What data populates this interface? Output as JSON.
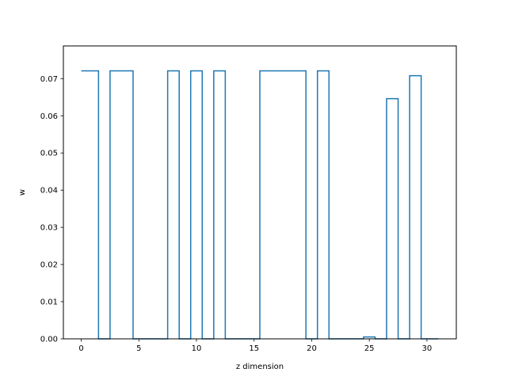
{
  "chart_data": {
    "type": "line",
    "drawstyle": "steps-mid",
    "title": "",
    "xlabel": "z dimension",
    "ylabel": "w",
    "xlim": [
      -1.55,
      32.55
    ],
    "ylim": [
      0.0,
      0.0788
    ],
    "xticks": [
      0,
      5,
      10,
      15,
      20,
      25,
      30
    ],
    "yticks": [
      0.0,
      0.01,
      0.02,
      0.03,
      0.04,
      0.05,
      0.06,
      0.07
    ],
    "ytick_labels": [
      "0.00",
      "0.01",
      "0.02",
      "0.03",
      "0.04",
      "0.05",
      "0.06",
      "0.07"
    ],
    "grid": false,
    "legend": false,
    "line_color": "#1f77b4",
    "series": [
      {
        "x": [
          0,
          1,
          2,
          3,
          4,
          5,
          6,
          7,
          8,
          9,
          10,
          11,
          12,
          13,
          14,
          15,
          16,
          17,
          18,
          19,
          20,
          21,
          22,
          23,
          24,
          25,
          26,
          27,
          28,
          29,
          30,
          31
        ],
        "values": [
          0.0721,
          0.0721,
          0.0,
          0.0721,
          0.0721,
          0.0,
          0.0,
          0.0,
          0.0721,
          0.0,
          0.0721,
          0.0,
          0.0721,
          0.0,
          0.0,
          0.0,
          0.0721,
          0.0721,
          0.0721,
          0.0721,
          0.0,
          0.0721,
          0.0,
          0.0,
          0.0,
          0.0005,
          0.0,
          0.0646,
          0.0,
          0.0708,
          0.0,
          0.0
        ]
      }
    ]
  }
}
